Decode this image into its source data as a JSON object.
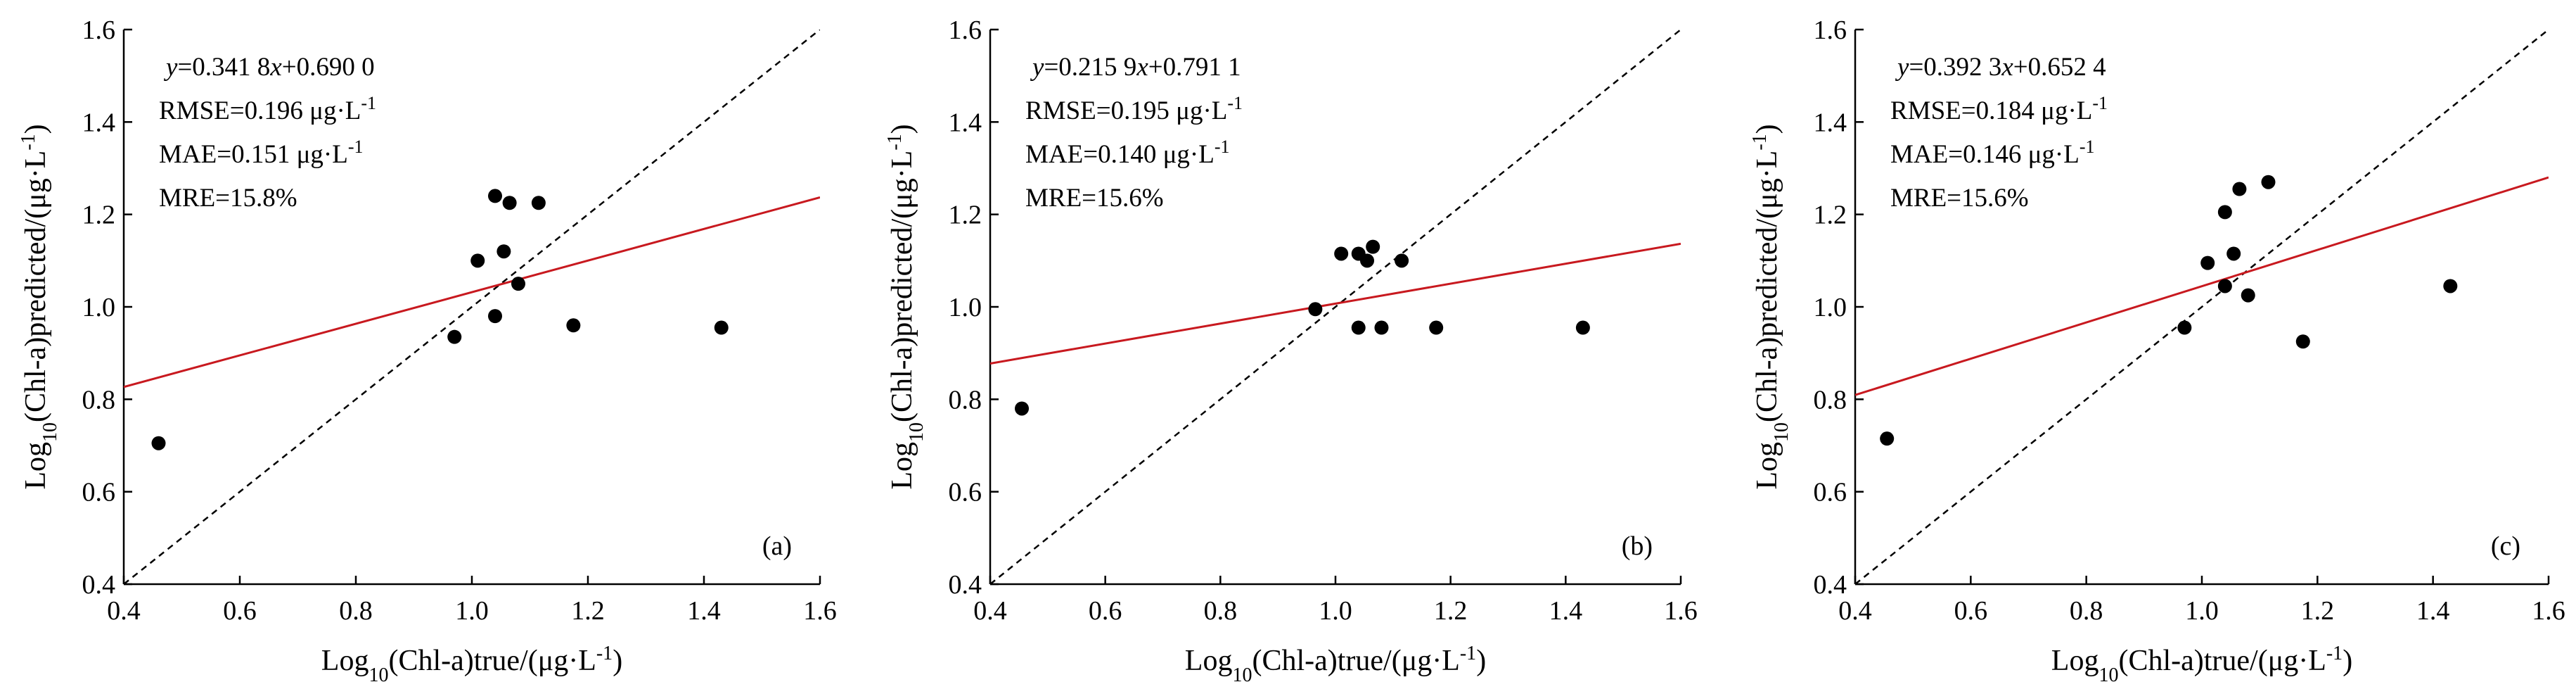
{
  "chart_data": [
    {
      "type": "scatter",
      "panel_label": "(a)",
      "xlabel": {
        "pre": "Log",
        "sub": "10",
        "post": "(Chl-a)true/(μg·L",
        "sup": "-1",
        "end": ")"
      },
      "ylabel": {
        "pre": "Log",
        "sub": "10",
        "post": "(Chl-a)predicted/(μg·L",
        "sup": "-1",
        "end": ")"
      },
      "xlim": [
        0.4,
        1.6
      ],
      "ylim": [
        0.4,
        1.6
      ],
      "xticks": [
        "0.4",
        "0.6",
        "0.8",
        "1.0",
        "1.2",
        "1.4",
        "1.6"
      ],
      "yticks": [
        "0.4",
        "0.6",
        "0.8",
        "1.0",
        "1.2",
        "1.4",
        "1.6"
      ],
      "grid": false,
      "equation": {
        "y": "y",
        "rest": "=0.341 8",
        "x": "x",
        "tail": "+0.690 0"
      },
      "stats": [
        {
          "text": "RMSE=0.196 μg·L",
          "sup": "-1"
        },
        {
          "text": "MAE=0.151 μg·L",
          "sup": "-1"
        },
        {
          "text": "MRE=15.8%",
          "sup": ""
        }
      ],
      "fit": {
        "slope": 0.3418,
        "intercept": 0.69,
        "color": "#c8191f"
      },
      "identity_line": {
        "style": "dashed",
        "color": "#000000"
      },
      "points": [
        {
          "x": 0.46,
          "y": 0.705
        },
        {
          "x": 0.97,
          "y": 0.935
        },
        {
          "x": 1.01,
          "y": 1.1
        },
        {
          "x": 1.04,
          "y": 1.24
        },
        {
          "x": 1.04,
          "y": 0.98
        },
        {
          "x": 1.055,
          "y": 1.12
        },
        {
          "x": 1.065,
          "y": 1.225
        },
        {
          "x": 1.08,
          "y": 1.05
        },
        {
          "x": 1.115,
          "y": 1.225
        },
        {
          "x": 1.175,
          "y": 0.96
        },
        {
          "x": 1.43,
          "y": 0.955
        }
      ]
    },
    {
      "type": "scatter",
      "panel_label": "(b)",
      "xlabel": {
        "pre": "Log",
        "sub": "10",
        "post": "(Chl-a)true/(μg·L",
        "sup": "-1",
        "end": ")"
      },
      "ylabel": {
        "pre": "Log",
        "sub": "10",
        "post": "(Chl-a)predicted/(μg·L",
        "sup": "-1",
        "end": ")"
      },
      "xlim": [
        0.4,
        1.6
      ],
      "ylim": [
        0.4,
        1.6
      ],
      "xticks": [
        "0.4",
        "0.6",
        "0.8",
        "1.0",
        "1.2",
        "1.4",
        "1.6"
      ],
      "yticks": [
        "0.4",
        "0.6",
        "0.8",
        "1.0",
        "1.2",
        "1.4",
        "1.6"
      ],
      "grid": false,
      "equation": {
        "y": "y",
        "rest": "=0.215 9",
        "x": "x",
        "tail": "+0.791 1"
      },
      "stats": [
        {
          "text": "RMSE=0.195 μg·L",
          "sup": "-1"
        },
        {
          "text": "MAE=0.140 μg·L",
          "sup": "-1"
        },
        {
          "text": "MRE=15.6%",
          "sup": ""
        }
      ],
      "fit": {
        "slope": 0.2159,
        "intercept": 0.7911,
        "color": "#c8191f"
      },
      "identity_line": {
        "style": "dashed",
        "color": "#000000"
      },
      "points": [
        {
          "x": 0.455,
          "y": 0.78
        },
        {
          "x": 0.965,
          "y": 0.995
        },
        {
          "x": 1.01,
          "y": 1.115
        },
        {
          "x": 1.04,
          "y": 1.115
        },
        {
          "x": 1.04,
          "y": 0.955
        },
        {
          "x": 1.055,
          "y": 1.1
        },
        {
          "x": 1.065,
          "y": 1.13
        },
        {
          "x": 1.08,
          "y": 0.955
        },
        {
          "x": 1.115,
          "y": 1.1
        },
        {
          "x": 1.175,
          "y": 0.955
        },
        {
          "x": 1.43,
          "y": 0.955
        }
      ]
    },
    {
      "type": "scatter",
      "panel_label": "(c)",
      "xlabel": {
        "pre": "Log",
        "sub": "10",
        "post": "(Chl-a)true/(μg·L",
        "sup": "-1",
        "end": ")"
      },
      "ylabel": {
        "pre": "Log",
        "sub": "10",
        "post": "(Chl-a)predicted/(μg·L",
        "sup": "-1",
        "end": ")"
      },
      "xlim": [
        0.4,
        1.6
      ],
      "ylim": [
        0.4,
        1.6
      ],
      "xticks": [
        "0.4",
        "0.6",
        "0.8",
        "1.0",
        "1.2",
        "1.4",
        "1.6"
      ],
      "yticks": [
        "0.4",
        "0.6",
        "0.8",
        "1.0",
        "1.2",
        "1.4",
        "1.6"
      ],
      "grid": false,
      "equation": {
        "y": "y",
        "rest": "=0.392 3",
        "x": "x",
        "tail": "+0.652 4"
      },
      "stats": [
        {
          "text": "RMSE=0.184 μg·L",
          "sup": "-1"
        },
        {
          "text": "MAE=0.146 μg·L",
          "sup": "-1"
        },
        {
          "text": "MRE=15.6%",
          "sup": ""
        }
      ],
      "fit": {
        "slope": 0.3923,
        "intercept": 0.6524,
        "color": "#c8191f"
      },
      "identity_line": {
        "style": "dashed",
        "color": "#000000"
      },
      "points": [
        {
          "x": 0.455,
          "y": 0.715
        },
        {
          "x": 0.97,
          "y": 0.955
        },
        {
          "x": 1.01,
          "y": 1.095
        },
        {
          "x": 1.04,
          "y": 1.205
        },
        {
          "x": 1.04,
          "y": 1.045
        },
        {
          "x": 1.055,
          "y": 1.115
        },
        {
          "x": 1.065,
          "y": 1.255
        },
        {
          "x": 1.08,
          "y": 1.025
        },
        {
          "x": 1.115,
          "y": 1.27
        },
        {
          "x": 1.175,
          "y": 0.925
        },
        {
          "x": 1.43,
          "y": 1.045
        }
      ]
    }
  ]
}
